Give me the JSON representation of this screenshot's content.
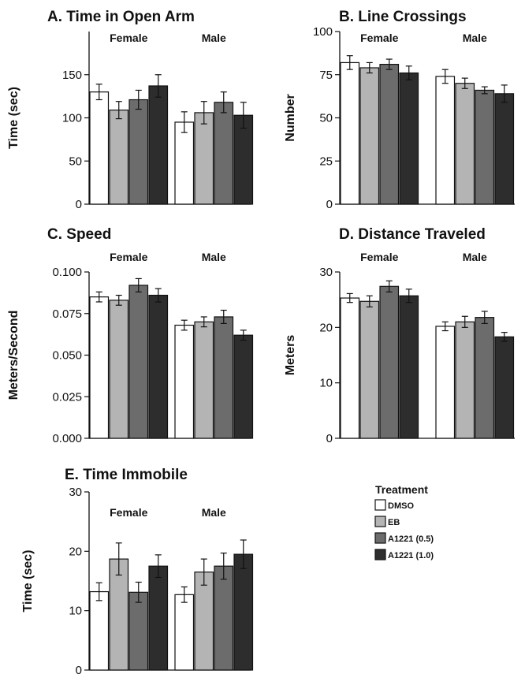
{
  "chart_data": [
    {
      "type": "bar",
      "title": "A. Time in Open Arm",
      "ylabel": "Time (sec)",
      "ylim": [
        0,
        200
      ],
      "yticks": [
        "0",
        "50",
        "100",
        "150"
      ],
      "groups": [
        "Female",
        "Male"
      ],
      "series": [
        {
          "name": "DMSO",
          "values": [
            130,
            95
          ],
          "errors": [
            9,
            12
          ]
        },
        {
          "name": "EB",
          "values": [
            109,
            106
          ],
          "errors": [
            10,
            13
          ]
        },
        {
          "name": "A1221 (0.5)",
          "values": [
            121,
            118
          ],
          "errors": [
            11,
            12
          ]
        },
        {
          "name": "A1221 (1.0)",
          "values": [
            137,
            103
          ],
          "errors": [
            13,
            15
          ]
        }
      ]
    },
    {
      "type": "bar",
      "title": "B. Line Crossings",
      "ylabel": "Number",
      "ylim": [
        0,
        100
      ],
      "yticks": [
        "0",
        "25",
        "50",
        "75",
        "100"
      ],
      "groups": [
        "Female",
        "Male"
      ],
      "series": [
        {
          "name": "DMSO",
          "values": [
            82,
            74
          ],
          "errors": [
            4,
            4
          ]
        },
        {
          "name": "EB",
          "values": [
            79,
            70
          ],
          "errors": [
            3,
            3
          ]
        },
        {
          "name": "A1221 (0.5)",
          "values": [
            81,
            66
          ],
          "errors": [
            3,
            2
          ]
        },
        {
          "name": "A1221 (1.0)",
          "values": [
            76,
            64
          ],
          "errors": [
            4,
            5
          ]
        }
      ]
    },
    {
      "type": "bar",
      "title": "C. Speed",
      "ylabel": "Meters/Second",
      "ylim": [
        0,
        0.1
      ],
      "yticks": [
        "0.000",
        "0.025",
        "0.050",
        "0.075",
        "0.100"
      ],
      "groups": [
        "Female",
        "Male"
      ],
      "series": [
        {
          "name": "DMSO",
          "values": [
            0.085,
            0.068
          ],
          "errors": [
            0.003,
            0.003
          ]
        },
        {
          "name": "EB",
          "values": [
            0.083,
            0.07
          ],
          "errors": [
            0.003,
            0.003
          ]
        },
        {
          "name": "A1221 (0.5)",
          "values": [
            0.092,
            0.073
          ],
          "errors": [
            0.004,
            0.004
          ]
        },
        {
          "name": "A1221 (1.0)",
          "values": [
            0.086,
            0.062
          ],
          "errors": [
            0.004,
            0.003
          ]
        }
      ]
    },
    {
      "type": "bar",
      "title": "D. Distance Traveled",
      "ylabel": "Meters",
      "ylim": [
        0,
        30
      ],
      "yticks": [
        "0",
        "10",
        "20",
        "30"
      ],
      "groups": [
        "Female",
        "Male"
      ],
      "series": [
        {
          "name": "DMSO",
          "values": [
            25.3,
            20.2
          ],
          "errors": [
            0.8,
            0.8
          ]
        },
        {
          "name": "EB",
          "values": [
            24.7,
            21
          ],
          "errors": [
            1,
            1
          ]
        },
        {
          "name": "A1221 (0.5)",
          "values": [
            27.4,
            21.8
          ],
          "errors": [
            1,
            1.1
          ]
        },
        {
          "name": "A1221 (1.0)",
          "values": [
            25.7,
            18.3
          ],
          "errors": [
            1.2,
            0.8
          ]
        }
      ]
    },
    {
      "type": "bar",
      "title": "E. Time Immobile",
      "ylabel": "Time (sec)",
      "ylim": [
        0,
        30
      ],
      "yticks": [
        "0",
        "10",
        "20",
        "30"
      ],
      "groups": [
        "Female",
        "Male"
      ],
      "series": [
        {
          "name": "DMSO",
          "values": [
            13.2,
            12.7
          ],
          "errors": [
            1.5,
            1.3
          ]
        },
        {
          "name": "EB",
          "values": [
            18.7,
            16.5
          ],
          "errors": [
            2.7,
            2.2
          ]
        },
        {
          "name": "A1221 (0.5)",
          "values": [
            13.1,
            17.5
          ],
          "errors": [
            1.7,
            2.2
          ]
        },
        {
          "name": "A1221 (1.0)",
          "values": [
            17.5,
            19.5
          ],
          "errors": [
            1.9,
            2.4
          ]
        }
      ]
    }
  ],
  "legend": {
    "title": "Treatment",
    "placement": "bottom-right",
    "items": [
      "DMSO",
      "EB",
      "A1221 (0.5)",
      "A1221 (1.0)"
    ]
  },
  "colors": [
    "#ffffff",
    "#b4b4b4",
    "#6c6c6c",
    "#2d2d2d"
  ]
}
